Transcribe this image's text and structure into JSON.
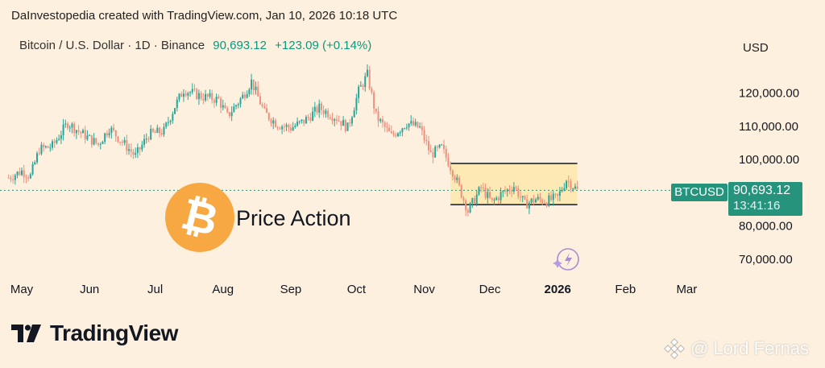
{
  "header": {
    "text": "DaInvestopedia created with TradingView.com, Jan 10, 2026 10:18 UTC"
  },
  "legend": {
    "symbol": "Bitcoin / U.S. Dollar · 1D · Binance",
    "price": "90,693.12",
    "change": "+123.09 (+0.14%)"
  },
  "currency": "USD",
  "price_tag": {
    "symbol": "BTCUSD",
    "price": "90,693.12",
    "countdown": "13:41:16"
  },
  "annotation": {
    "text": "Price Action"
  },
  "brand": {
    "name": "TradingView"
  },
  "watermark": {
    "text": "@ Lord Fernas"
  },
  "colors": {
    "up": "#26a69a",
    "down": "#ef8f7d",
    "box_fill": "#fde9b3",
    "price_line": "#26947c",
    "background": "#fdf0de"
  },
  "chart_data": {
    "type": "candlestick",
    "x_ticks": [
      "May",
      "Jun",
      "Jul",
      "Aug",
      "Sep",
      "Oct",
      "Nov",
      "Dec",
      "2026",
      "Feb",
      "Mar"
    ],
    "y_ticks": [
      "70,000.00",
      "80,000.00",
      "100,000.00",
      "110,000.00",
      "120,000.00"
    ],
    "ylim": [
      66000,
      130000
    ],
    "last_price": 90693.12,
    "range_box": {
      "x_start": "2025-11-13",
      "x_end": "2026-01-10",
      "y_high": 98800,
      "y_low": 86400
    },
    "closes": [
      [
        "2025-04-25",
        94500
      ],
      [
        "2025-05-01",
        96500
      ],
      [
        "2025-05-05",
        95000
      ],
      [
        "2025-05-09",
        103000
      ],
      [
        "2025-05-15",
        104000
      ],
      [
        "2025-05-22",
        111000
      ],
      [
        "2025-05-28",
        108000
      ],
      [
        "2025-06-05",
        104500
      ],
      [
        "2025-06-10",
        109500
      ],
      [
        "2025-06-17",
        104500
      ],
      [
        "2025-06-22",
        101000
      ],
      [
        "2025-06-28",
        107500
      ],
      [
        "2025-07-05",
        108500
      ],
      [
        "2025-07-10",
        116000
      ],
      [
        "2025-07-14",
        121000
      ],
      [
        "2025-07-22",
        119000
      ],
      [
        "2025-07-30",
        118000
      ],
      [
        "2025-08-03",
        113000
      ],
      [
        "2025-08-10",
        119000
      ],
      [
        "2025-08-14",
        123500
      ],
      [
        "2025-08-20",
        114000
      ],
      [
        "2025-08-26",
        110500
      ],
      [
        "2025-09-01",
        109500
      ],
      [
        "2025-09-07",
        111500
      ],
      [
        "2025-09-14",
        115500
      ],
      [
        "2025-09-22",
        112500
      ],
      [
        "2025-09-27",
        109500
      ],
      [
        "2025-10-02",
        120500
      ],
      [
        "2025-10-06",
        125500
      ],
      [
        "2025-10-10",
        113000
      ],
      [
        "2025-10-17",
        107000
      ],
      [
        "2025-10-24",
        111000
      ],
      [
        "2025-10-30",
        109500
      ],
      [
        "2025-11-04",
        101500
      ],
      [
        "2025-11-09",
        103500
      ],
      [
        "2025-11-15",
        95000
      ],
      [
        "2025-11-21",
        84500
      ],
      [
        "2025-11-27",
        91500
      ],
      [
        "2025-12-02",
        87000
      ],
      [
        "2025-12-06",
        89500
      ],
      [
        "2025-12-12",
        92000
      ],
      [
        "2025-12-17",
        86500
      ],
      [
        "2025-12-22",
        88000
      ],
      [
        "2025-12-27",
        87500
      ],
      [
        "2026-01-01",
        88500
      ],
      [
        "2026-01-05",
        94000
      ],
      [
        "2026-01-10",
        90693
      ]
    ]
  }
}
